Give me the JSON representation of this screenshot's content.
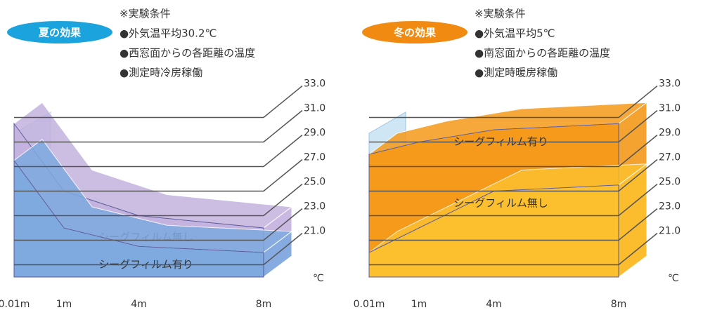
{
  "chart_data": [
    {
      "type": "area",
      "badge": "夏の効果",
      "badge_color": "#1aa3dd",
      "conditions": [
        "※実験条件",
        "●外気温平均30.2℃",
        "●西窓面からの各距離の温度",
        "●測定時冷房稼働"
      ],
      "categories": [
        "0.01m",
        "1m",
        "4m",
        "8m"
      ],
      "series": [
        {
          "name": "シーグフィルム無し",
          "color": "#c4b2df",
          "values": [
            32.5,
            27,
            25,
            24
          ]
        },
        {
          "name": "シーグフィルム有り",
          "color": "#7eaae0",
          "values": [
            29.5,
            24,
            22.5,
            22
          ]
        }
      ],
      "ylim": [
        20,
        34
      ],
      "yticks": [
        {
          "value": 21,
          "label": "21.0"
        },
        {
          "value": 23,
          "label": "23.0"
        },
        {
          "value": 25,
          "label": "25.0"
        },
        {
          "value": 27,
          "label": "27.0"
        },
        {
          "value": 29,
          "label": "29.0"
        },
        {
          "value": 31,
          "label": "31.0"
        },
        {
          "value": 33,
          "label": "33.0"
        }
      ],
      "y_unit": "℃"
    },
    {
      "type": "area",
      "badge": "冬の効果",
      "badge_color": "#f08a10",
      "conditions": [
        "※実験条件",
        "●外気温平均5℃",
        "●南窓面からの各距離の温度",
        "●測定時暖房稼働"
      ],
      "categories": [
        "0.01m",
        "1m",
        "4m",
        "8m"
      ],
      "series": [
        {
          "name": "シーグフィルム有り",
          "color": "#f59a1a",
          "values": [
            30,
            31,
            32,
            32.5
          ]
        },
        {
          "name": "シーグフィルム無し",
          "color": "#fcc02e",
          "values": [
            22,
            24,
            27,
            27.5
          ]
        }
      ],
      "ylim": [
        20,
        34
      ],
      "yticks": [
        {
          "value": 21,
          "label": "21.0"
        },
        {
          "value": 23,
          "label": "23.0"
        },
        {
          "value": 25,
          "label": "25.0"
        },
        {
          "value": 27,
          "label": "27.0"
        },
        {
          "value": 29,
          "label": "29.0"
        },
        {
          "value": 31,
          "label": "31.0"
        },
        {
          "value": 33,
          "label": "33.0"
        }
      ],
      "y_unit": "℃"
    }
  ]
}
